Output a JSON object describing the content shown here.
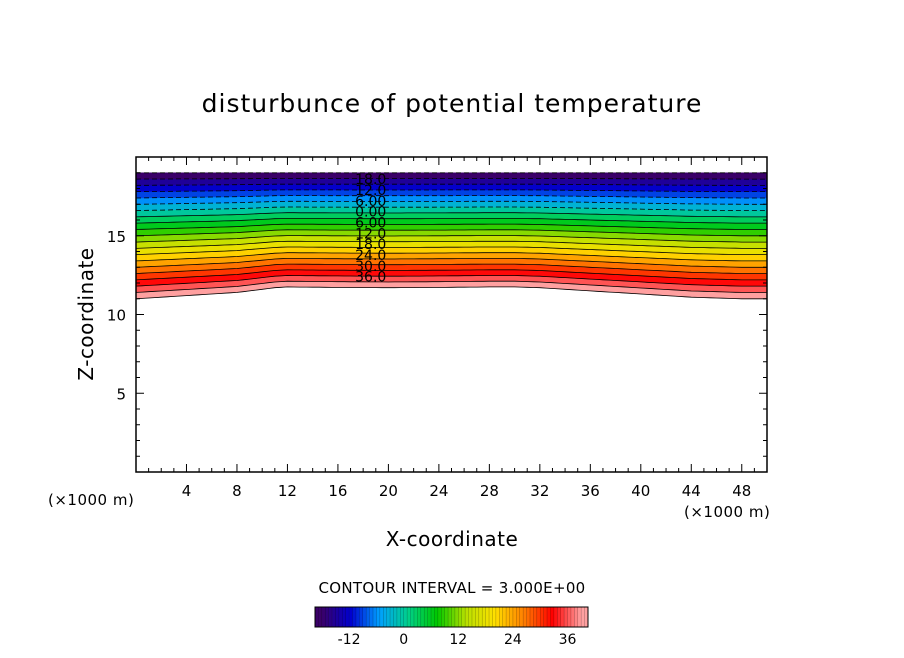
{
  "chart_data": {
    "type": "contour",
    "title": "disturbunce of potential temperature",
    "xlabel": "X-coordinate",
    "ylabel": "Z-coordinate",
    "x_unit_left": "(×1000 m)",
    "x_unit_right": "(×1000 m)",
    "xlim": [
      0,
      50
    ],
    "ylim": [
      0,
      20
    ],
    "x_ticks": [
      4,
      8,
      12,
      16,
      20,
      24,
      28,
      32,
      36,
      40,
      44,
      48
    ],
    "y_ticks": [
      5,
      10,
      15
    ],
    "contour_interval_text": "CONTOUR INTERVAL = 3.000E+00",
    "contour_interval": 3,
    "level_min": -18,
    "level_max": 39,
    "contour_labels": [
      "18.0",
      "12.0",
      "6.00",
      "0.00",
      "6.00",
      "12.0",
      "18.0",
      "24.0",
      "30.0",
      "36.0"
    ],
    "colorbar_ticks": [
      "-12",
      "0",
      "12",
      "24",
      "36"
    ],
    "colorbar_tick_values": [
      -12,
      0,
      12,
      24,
      36
    ],
    "field_bottom_profile": {
      "x": [
        0,
        4,
        8,
        10,
        11,
        12,
        16,
        20,
        24,
        28,
        30,
        32,
        36,
        40,
        44,
        48,
        50
      ],
      "z": [
        11.0,
        11.2,
        11.4,
        11.6,
        11.7,
        11.75,
        11.72,
        11.7,
        11.72,
        11.75,
        11.75,
        11.7,
        11.5,
        11.3,
        11.1,
        11.0,
        11.0
      ]
    },
    "field_top_z": 19.0,
    "grid": false,
    "colormap": [
      "#3a0068",
      "#0000d0",
      "#00a0ff",
      "#00d08a",
      "#00c800",
      "#b8e000",
      "#ffe000",
      "#ff8000",
      "#ff0000",
      "#ffa0a0"
    ]
  }
}
